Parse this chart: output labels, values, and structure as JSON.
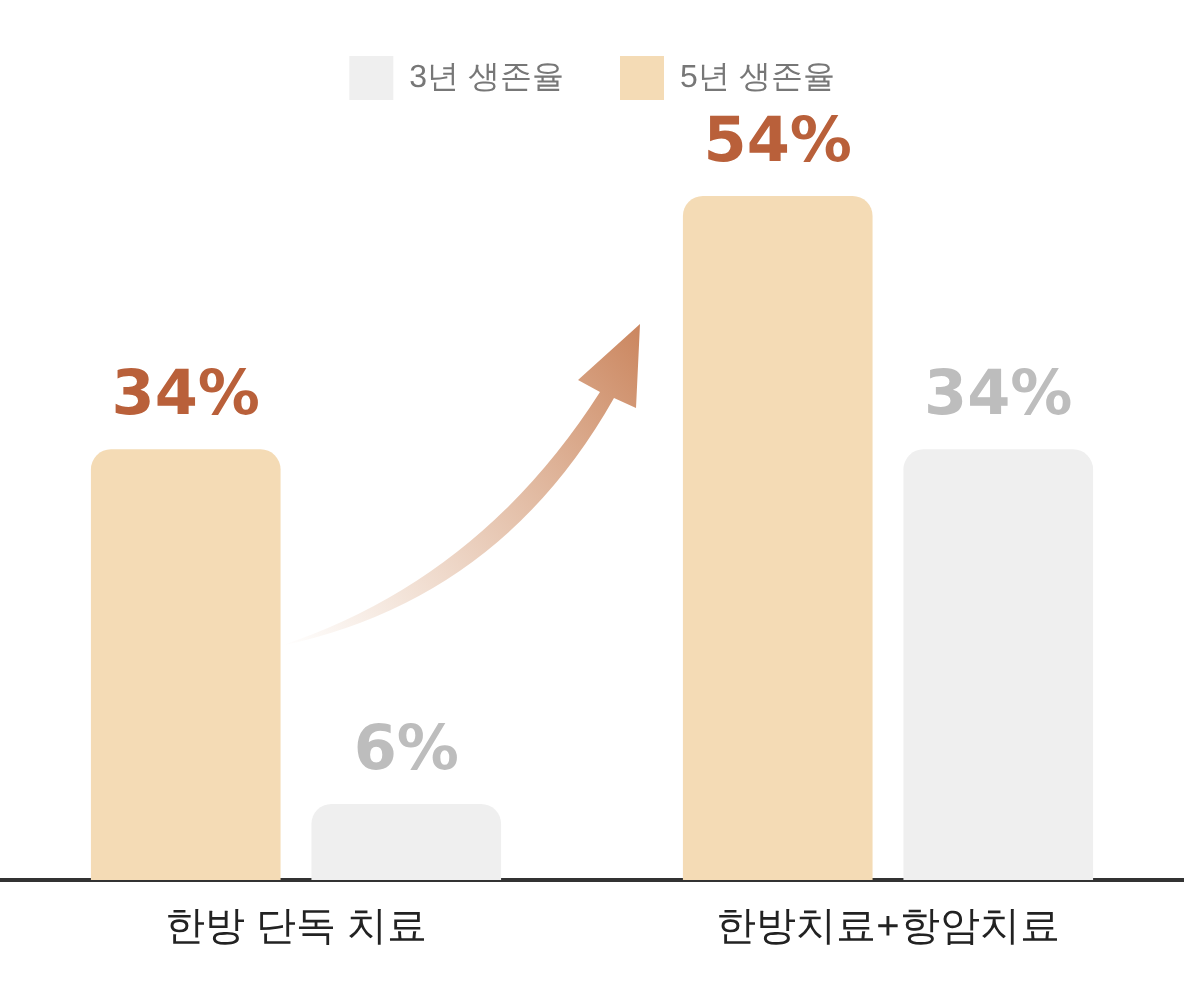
{
  "chart_data": {
    "type": "bar",
    "categories": [
      "한방 단독 치료",
      "한방치료+항암치료"
    ],
    "series": [
      {
        "name": "5년 생존율",
        "color": "#f4dbb5",
        "values": [
          34,
          54
        ],
        "value_labels": [
          "34%",
          "54%"
        ]
      },
      {
        "name": "3년 생존율",
        "color": "#efefef",
        "values": [
          6,
          34
        ],
        "value_labels": [
          "6%",
          "34%"
        ]
      }
    ],
    "legend": "top",
    "grid": false
  }
}
